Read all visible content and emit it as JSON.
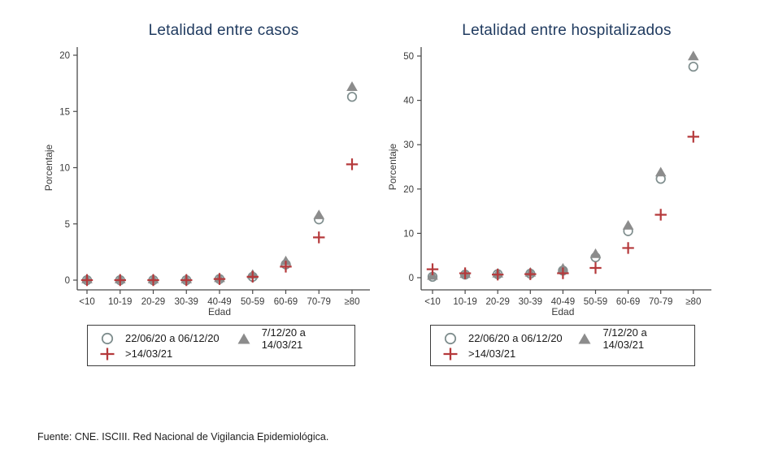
{
  "page": {
    "background": "#ffffff",
    "source_note": "Fuente: CNE. ISCIII. Red Nacional de Vigilancia Epidemiológica."
  },
  "colors": {
    "title": "#1f3a5f",
    "axis": "#4a4a4a",
    "tick_text": "#3a3a3a",
    "circle_marker": "#7f8e8e",
    "triangle_marker": "#8c8c8c",
    "plus_marker": "#b5393b"
  },
  "chart_data": [
    {
      "type": "scatter",
      "title": "Letalidad entre casos",
      "xlabel": "Edad",
      "ylabel": "Porcentaje",
      "ylim": [
        0,
        20
      ],
      "yticks": [
        0,
        5,
        10,
        15,
        20
      ],
      "grid": false,
      "legend_position": "below",
      "categories": [
        "<10",
        "10-19",
        "20-29",
        "30-39",
        "40-49",
        "50-59",
        "60-69",
        "70-79",
        "≥80"
      ],
      "series": [
        {
          "name": "22/06/20 a 06/12/20",
          "marker": "circle",
          "color": "#7f8e8e",
          "values": [
            0.0,
            0.0,
            0.0,
            0.0,
            0.1,
            0.3,
            1.4,
            5.4,
            16.3
          ]
        },
        {
          "name": "7/12/20 a 14/03/21",
          "marker": "triangle",
          "color": "#8c8c8c",
          "values": [
            0.1,
            0.1,
            0.1,
            0.1,
            0.2,
            0.5,
            1.7,
            5.8,
            17.2
          ]
        },
        {
          "name": ">14/03/21",
          "marker": "plus",
          "color": "#b5393b",
          "values": [
            0.0,
            0.0,
            0.0,
            0.0,
            0.1,
            0.3,
            1.2,
            3.8,
            10.3
          ]
        }
      ]
    },
    {
      "type": "scatter",
      "title": "Letalidad entre hospitalizados",
      "xlabel": "Edad",
      "ylabel": "Porcentaje",
      "ylim": [
        0,
        50
      ],
      "yticks": [
        0,
        10,
        20,
        30,
        40,
        50
      ],
      "grid": false,
      "legend_position": "below",
      "categories": [
        "<10",
        "10-19",
        "20-29",
        "30-39",
        "40-49",
        "50-59",
        "60-69",
        "70-79",
        "≥80"
      ],
      "series": [
        {
          "name": "22/06/20 a 06/12/20",
          "marker": "circle",
          "color": "#7f8e8e",
          "values": [
            0.2,
            0.7,
            0.8,
            0.9,
            1.6,
            4.6,
            10.5,
            22.3,
            47.6
          ]
        },
        {
          "name": "7/12/20 a 14/03/21",
          "marker": "triangle",
          "color": "#8c8c8c",
          "values": [
            0.5,
            0.9,
            1.0,
            1.2,
            2.1,
            5.4,
            11.8,
            23.8,
            50.0
          ]
        },
        {
          "name": ">14/03/21",
          "marker": "plus",
          "color": "#b5393b",
          "values": [
            1.9,
            1.0,
            0.7,
            0.8,
            1.0,
            2.2,
            6.7,
            14.2,
            31.8
          ]
        }
      ]
    }
  ]
}
